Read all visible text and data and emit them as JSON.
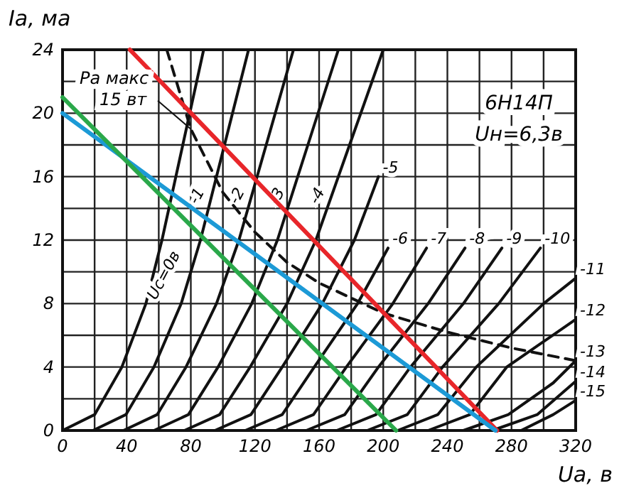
{
  "chart_data": {
    "type": "line",
    "xlabel": "Uа, в",
    "ylabel": "Iа, ма",
    "xlim": [
      0,
      320
    ],
    "ylim": [
      0,
      24
    ],
    "xticks": [
      0,
      {
        "value": 20,
        "label": null
      },
      40,
      {
        "value": 60,
        "label": null
      },
      80,
      {
        "value": 100,
        "label": null
      },
      120,
      {
        "value": 140,
        "label": null
      },
      160,
      {
        "value": 180,
        "label": null
      },
      200,
      {
        "value": 220,
        "label": null
      },
      240,
      {
        "value": 260,
        "label": null
      },
      280,
      {
        "value": 300,
        "label": null
      },
      320
    ],
    "yticks": [
      0,
      {
        "value": 2,
        "label": null
      },
      4,
      {
        "value": 6,
        "label": null
      },
      8,
      {
        "value": 10,
        "label": null
      },
      12,
      {
        "value": 14,
        "label": null
      },
      16,
      {
        "value": 18,
        "label": null
      },
      20,
      {
        "value": 22,
        "label": null
      },
      24
    ],
    "grid": true,
    "series": [
      {
        "name": "Uс=0в",
        "color": "#111111",
        "x": [
          0,
          20,
          37,
          52,
          62,
          75,
          88
        ],
        "values": [
          0,
          1,
          4,
          8,
          12,
          18,
          24
        ]
      },
      {
        "name": "-1",
        "color": "#111111",
        "x": [
          19,
          39.5,
          57,
          74,
          86,
          101,
          116
        ],
        "values": [
          0,
          1,
          4,
          8,
          12,
          18,
          24
        ]
      },
      {
        "name": "-2",
        "color": "#111111",
        "x": [
          38,
          59,
          77,
          96,
          110,
          127,
          144
        ],
        "values": [
          0,
          1,
          4,
          8,
          12,
          18,
          24
        ]
      },
      {
        "name": "-3",
        "color": "#111111",
        "x": [
          57,
          78.5,
          97,
          118,
          134,
          153,
          172
        ],
        "values": [
          0,
          1,
          4,
          8,
          12,
          18,
          24
        ]
      },
      {
        "name": "-4",
        "color": "#111111",
        "x": [
          76,
          98,
          117,
          140,
          158,
          179,
          200
        ],
        "values": [
          0,
          1,
          4,
          8,
          12,
          18,
          24
        ]
      },
      {
        "name": "-5",
        "color": "#111111",
        "x": [
          95,
          117.5,
          137,
          162,
          182,
          197
        ],
        "values": [
          0,
          1,
          4,
          8,
          12,
          16
        ]
      },
      {
        "name": "-6",
        "color": "#111111",
        "x": [
          114,
          137,
          157,
          184,
          203
        ],
        "values": [
          0,
          1,
          4,
          8,
          11.5
        ]
      },
      {
        "name": "-7",
        "color": "#111111",
        "x": [
          133,
          156.5,
          177,
          206,
          227
        ],
        "values": [
          0,
          1,
          4,
          8,
          11.5
        ]
      },
      {
        "name": "-8",
        "color": "#111111",
        "x": [
          152,
          176,
          197,
          228,
          251
        ],
        "values": [
          0,
          1,
          4,
          8,
          11.5
        ]
      },
      {
        "name": "-9",
        "color": "#111111",
        "x": [
          171,
          195.5,
          217,
          250,
          274
        ],
        "values": [
          0,
          1,
          4,
          8,
          11.5
        ]
      },
      {
        "name": "-10",
        "color": "#111111",
        "x": [
          190,
          215,
          237,
          272,
          298
        ],
        "values": [
          0,
          1,
          4,
          8,
          11.5
        ]
      },
      {
        "name": "-11",
        "color": "#111111",
        "x": [
          209,
          234,
          258,
          300,
          320
        ],
        "values": [
          0,
          1,
          4,
          8,
          9.6
        ]
      },
      {
        "name": "-12",
        "color": "#111111",
        "x": [
          228,
          254,
          277,
          320
        ],
        "values": [
          0,
          1,
          4,
          7
        ]
      },
      {
        "name": "-13",
        "color": "#111111",
        "x": [
          250,
          278,
          306,
          320
        ],
        "values": [
          0,
          1,
          3,
          4.4
        ]
      },
      {
        "name": "-14",
        "color": "#111111",
        "x": [
          268,
          296,
          320
        ],
        "values": [
          0,
          1,
          3.1
        ]
      },
      {
        "name": "-15",
        "color": "#111111",
        "x": [
          286,
          306,
          320
        ],
        "values": [
          0,
          1,
          1.9
        ]
      },
      {
        "color": "#111111",
        "line_style": "dashed",
        "x": [
          65,
          80,
          100,
          120,
          140,
          160,
          200,
          240,
          280,
          320
        ],
        "values": [
          24,
          19,
          15,
          12.5,
          10.6,
          9.3,
          7.4,
          6.2,
          5.2,
          4.4
        ]
      },
      {
        "color": "#e8262a",
        "x": [
          42,
          271
        ],
        "values": [
          24,
          0
        ]
      },
      {
        "color": "#1c9ad6",
        "x": [
          0,
          270
        ],
        "values": [
          20,
          0
        ]
      },
      {
        "color": "#2aa84a",
        "x": [
          0,
          208
        ],
        "values": [
          21,
          0
        ]
      }
    ],
    "annotations": [
      {
        "text": "Pа макс 15 вт",
        "x": 80,
        "y": 19
      },
      "6Н14П",
      "Uн=6,3в"
    ]
  }
}
